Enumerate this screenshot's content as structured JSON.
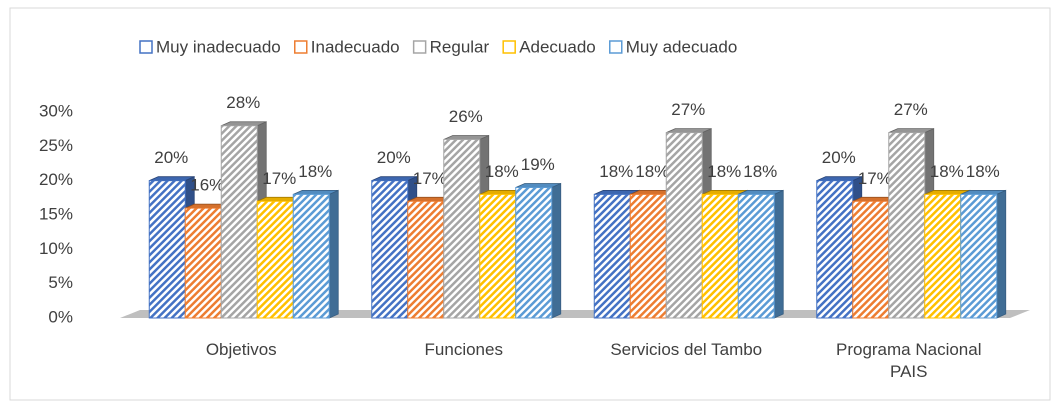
{
  "chart_data": {
    "type": "bar",
    "categories": [
      "Objetivos",
      "Funciones",
      "Servicios del Tambo",
      "Programa Nacional PAIS"
    ],
    "series": [
      {
        "name": "Muy inadecuado",
        "color": "#4472c4",
        "values": [
          20,
          20,
          18,
          20
        ],
        "value_labels": [
          "20%",
          "20%",
          "18%",
          "20%"
        ]
      },
      {
        "name": "Inadecuado",
        "color": "#ed7d31",
        "values": [
          16,
          17,
          18,
          17
        ],
        "value_labels": [
          "16%",
          "17%",
          "18%",
          "17%"
        ]
      },
      {
        "name": "Regular",
        "color": "#a5a5a5",
        "values": [
          28,
          26,
          27,
          27
        ],
        "value_labels": [
          "28%",
          "26%",
          "27%",
          "27%"
        ]
      },
      {
        "name": "Adecuado",
        "color": "#ffc000",
        "values": [
          17,
          18,
          18,
          18
        ],
        "value_labels": [
          "17%",
          "18%",
          "18%",
          "18%"
        ]
      },
      {
        "name": "Muy adecuado",
        "color": "#5b9bd5",
        "values": [
          18,
          19,
          18,
          18
        ],
        "value_labels": [
          "18%",
          "19%",
          "18%",
          "18%"
        ]
      }
    ],
    "ylim": [
      0,
      30
    ],
    "yticks": [
      {
        "value": 0,
        "label": "0%"
      },
      {
        "value": 5,
        "label": "5%"
      },
      {
        "value": 10,
        "label": "10%"
      },
      {
        "value": 15,
        "label": "15%"
      },
      {
        "value": 20,
        "label": "20%"
      },
      {
        "value": 25,
        "label": "25%"
      },
      {
        "value": 30,
        "label": "30%"
      }
    ],
    "legend": "top"
  }
}
